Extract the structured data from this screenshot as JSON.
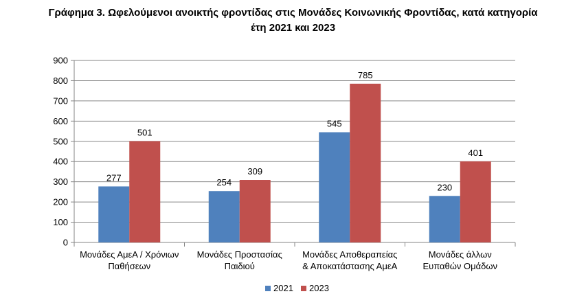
{
  "chart_data": {
    "type": "bar",
    "title_line1": "Γράφημα 3. Ωφελούμενοι ανοικτής φροντίδας στις Μονάδες Κοινωνικής Φροντίδας, κατά κατηγορία",
    "title_line2": "έτη 2021 και 2023",
    "categories": [
      [
        "Μονάδες ΑμεΑ / Χρόνιων",
        "Παθήσεων"
      ],
      [
        "Μονάδες Προστασίας",
        "Παιδιού"
      ],
      [
        "Μονάδες Αποθεραπείας",
        "& Αποκατάστασης ΑμεΑ"
      ],
      [
        "Μονάδες άλλων",
        "Ευπαθών Ομάδων"
      ]
    ],
    "series": [
      {
        "name": "2021",
        "color": "#4f81bd",
        "values": [
          277,
          254,
          545,
          230
        ]
      },
      {
        "name": "2023",
        "color": "#c0504d",
        "values": [
          501,
          309,
          785,
          401
        ]
      }
    ],
    "ylim": [
      0,
      900
    ],
    "yticks": [
      0,
      100,
      200,
      300,
      400,
      500,
      600,
      700,
      800,
      900
    ],
    "grid": true,
    "legend_position": "bottom"
  }
}
